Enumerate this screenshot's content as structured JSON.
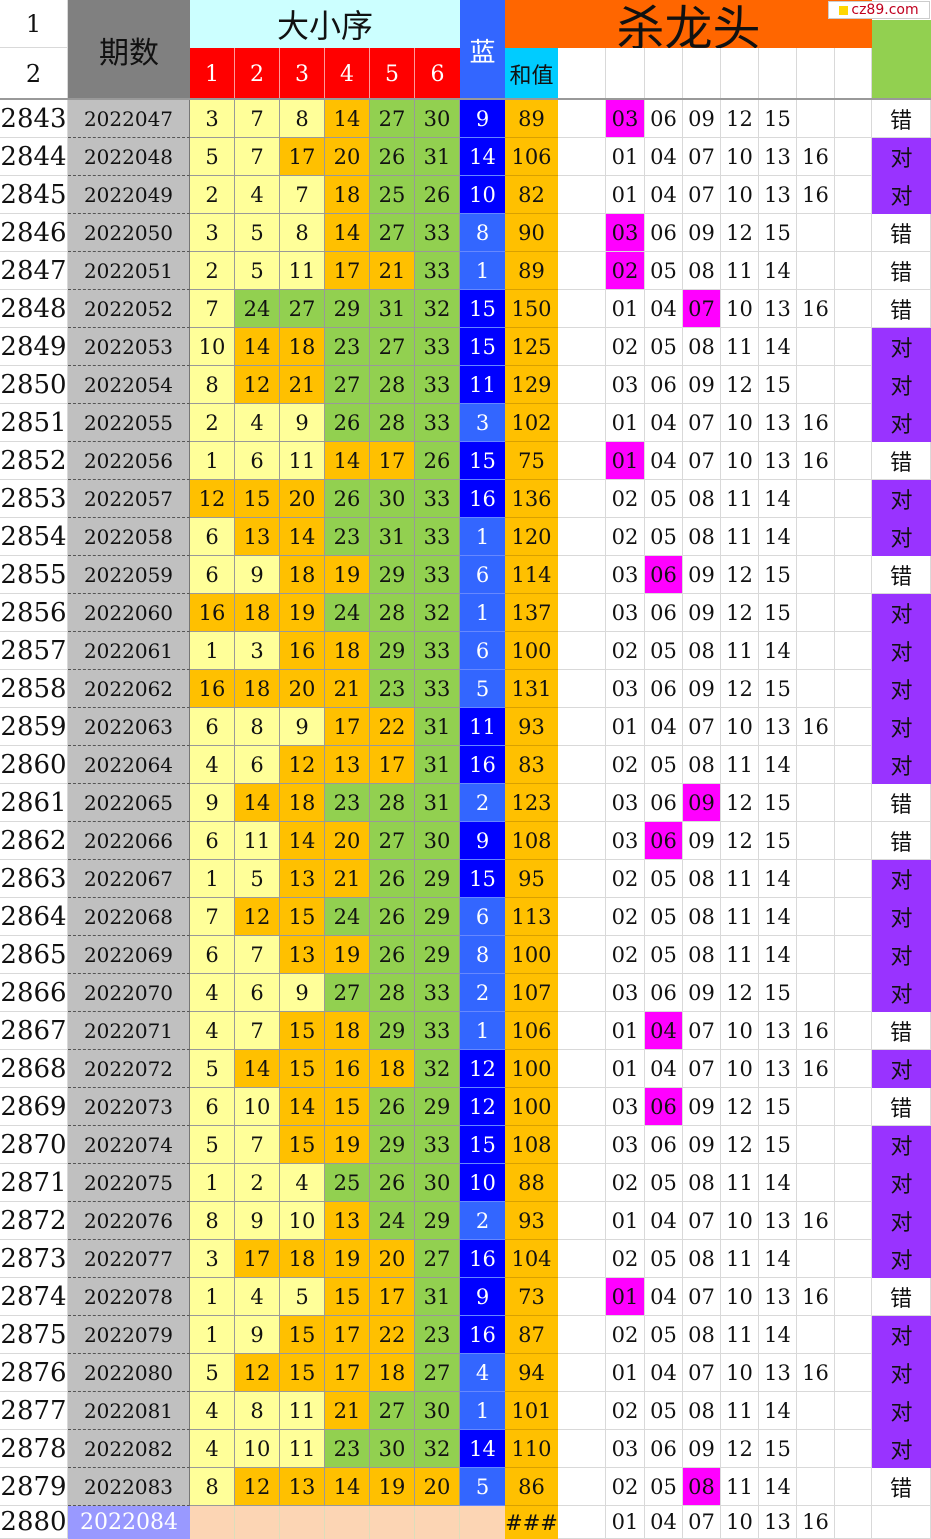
{
  "header": {
    "row_label_1": "1",
    "row_label_2": "2",
    "period_label": "期数",
    "size_order_label": "大小序",
    "ball_cols": [
      "1",
      "2",
      "3",
      "4",
      "5",
      "6"
    ],
    "blue_label": "蓝",
    "sum_label": "和值",
    "kill_label": "杀龙头"
  },
  "watermark": "cz89.com",
  "rows": [
    {
      "n": "2843",
      "p": "2022047",
      "r": [
        3,
        7,
        8,
        14,
        27,
        30
      ],
      "b": 9,
      "s": "89",
      "k": [
        "03",
        "06",
        "09",
        "12",
        "15"
      ],
      "h": 0,
      "res": "错"
    },
    {
      "n": "2844",
      "p": "2022048",
      "r": [
        5,
        7,
        17,
        20,
        26,
        31
      ],
      "b": 14,
      "s": "106",
      "k": [
        "01",
        "04",
        "07",
        "10",
        "13",
        "16"
      ],
      "h": -1,
      "res": "对"
    },
    {
      "n": "2845",
      "p": "2022049",
      "r": [
        2,
        4,
        7,
        18,
        25,
        26
      ],
      "b": 10,
      "s": "82",
      "k": [
        "01",
        "04",
        "07",
        "10",
        "13",
        "16"
      ],
      "h": -1,
      "res": "对"
    },
    {
      "n": "2846",
      "p": "2022050",
      "r": [
        3,
        5,
        8,
        14,
        27,
        33
      ],
      "b": 8,
      "s": "90",
      "k": [
        "03",
        "06",
        "09",
        "12",
        "15"
      ],
      "h": 0,
      "res": "错"
    },
    {
      "n": "2847",
      "p": "2022051",
      "r": [
        2,
        5,
        11,
        17,
        21,
        33
      ],
      "b": 1,
      "s": "89",
      "k": [
        "02",
        "05",
        "08",
        "11",
        "14"
      ],
      "h": 0,
      "res": "错"
    },
    {
      "n": "2848",
      "p": "2022052",
      "r": [
        7,
        24,
        27,
        29,
        31,
        32
      ],
      "b": 15,
      "s": "150",
      "k": [
        "01",
        "04",
        "07",
        "10",
        "13",
        "16"
      ],
      "h": 2,
      "res": "错"
    },
    {
      "n": "2849",
      "p": "2022053",
      "r": [
        10,
        14,
        18,
        23,
        27,
        33
      ],
      "b": 15,
      "s": "125",
      "k": [
        "02",
        "05",
        "08",
        "11",
        "14"
      ],
      "h": -1,
      "res": "对"
    },
    {
      "n": "2850",
      "p": "2022054",
      "r": [
        8,
        12,
        21,
        27,
        28,
        33
      ],
      "b": 11,
      "s": "129",
      "k": [
        "03",
        "06",
        "09",
        "12",
        "15"
      ],
      "h": -1,
      "res": "对"
    },
    {
      "n": "2851",
      "p": "2022055",
      "r": [
        2,
        4,
        9,
        26,
        28,
        33
      ],
      "b": 3,
      "s": "102",
      "k": [
        "01",
        "04",
        "07",
        "10",
        "13",
        "16"
      ],
      "h": -1,
      "res": "对"
    },
    {
      "n": "2852",
      "p": "2022056",
      "r": [
        1,
        6,
        11,
        14,
        17,
        26
      ],
      "b": 15,
      "s": "75",
      "k": [
        "01",
        "04",
        "07",
        "10",
        "13",
        "16"
      ],
      "h": 0,
      "res": "错"
    },
    {
      "n": "2853",
      "p": "2022057",
      "r": [
        12,
        15,
        20,
        26,
        30,
        33
      ],
      "b": 16,
      "s": "136",
      "k": [
        "02",
        "05",
        "08",
        "11",
        "14"
      ],
      "h": -1,
      "res": "对"
    },
    {
      "n": "2854",
      "p": "2022058",
      "r": [
        6,
        13,
        14,
        23,
        31,
        33
      ],
      "b": 1,
      "s": "120",
      "k": [
        "02",
        "05",
        "08",
        "11",
        "14"
      ],
      "h": -1,
      "res": "对"
    },
    {
      "n": "2855",
      "p": "2022059",
      "r": [
        6,
        9,
        18,
        19,
        29,
        33
      ],
      "b": 6,
      "s": "114",
      "k": [
        "03",
        "06",
        "09",
        "12",
        "15"
      ],
      "h": 1,
      "res": "错"
    },
    {
      "n": "2856",
      "p": "2022060",
      "r": [
        16,
        18,
        19,
        24,
        28,
        32
      ],
      "b": 1,
      "s": "137",
      "k": [
        "03",
        "06",
        "09",
        "12",
        "15"
      ],
      "h": -1,
      "res": "对"
    },
    {
      "n": "2857",
      "p": "2022061",
      "r": [
        1,
        3,
        16,
        18,
        29,
        33
      ],
      "b": 6,
      "s": "100",
      "k": [
        "02",
        "05",
        "08",
        "11",
        "14"
      ],
      "h": -1,
      "res": "对"
    },
    {
      "n": "2858",
      "p": "2022062",
      "r": [
        16,
        18,
        20,
        21,
        23,
        33
      ],
      "b": 5,
      "s": "131",
      "k": [
        "03",
        "06",
        "09",
        "12",
        "15"
      ],
      "h": -1,
      "res": "对"
    },
    {
      "n": "2859",
      "p": "2022063",
      "r": [
        6,
        8,
        9,
        17,
        22,
        31
      ],
      "b": 11,
      "s": "93",
      "k": [
        "01",
        "04",
        "07",
        "10",
        "13",
        "16"
      ],
      "h": -1,
      "res": "对"
    },
    {
      "n": "2860",
      "p": "2022064",
      "r": [
        4,
        6,
        12,
        13,
        17,
        31
      ],
      "b": 16,
      "s": "83",
      "k": [
        "02",
        "05",
        "08",
        "11",
        "14"
      ],
      "h": -1,
      "res": "对"
    },
    {
      "n": "2861",
      "p": "2022065",
      "r": [
        9,
        14,
        18,
        23,
        28,
        31
      ],
      "b": 2,
      "s": "123",
      "k": [
        "03",
        "06",
        "09",
        "12",
        "15"
      ],
      "h": 2,
      "res": "错"
    },
    {
      "n": "2862",
      "p": "2022066",
      "r": [
        6,
        11,
        14,
        20,
        27,
        30
      ],
      "b": 9,
      "s": "108",
      "k": [
        "03",
        "06",
        "09",
        "12",
        "15"
      ],
      "h": 1,
      "res": "错"
    },
    {
      "n": "2863",
      "p": "2022067",
      "r": [
        1,
        5,
        13,
        21,
        26,
        29
      ],
      "b": 15,
      "s": "95",
      "k": [
        "02",
        "05",
        "08",
        "11",
        "14"
      ],
      "h": -1,
      "res": "对"
    },
    {
      "n": "2864",
      "p": "2022068",
      "r": [
        7,
        12,
        15,
        24,
        26,
        29
      ],
      "b": 6,
      "s": "113",
      "k": [
        "02",
        "05",
        "08",
        "11",
        "14"
      ],
      "h": -1,
      "res": "对"
    },
    {
      "n": "2865",
      "p": "2022069",
      "r": [
        6,
        7,
        13,
        19,
        26,
        29
      ],
      "b": 8,
      "s": "100",
      "k": [
        "02",
        "05",
        "08",
        "11",
        "14"
      ],
      "h": -1,
      "res": "对"
    },
    {
      "n": "2866",
      "p": "2022070",
      "r": [
        4,
        6,
        9,
        27,
        28,
        33
      ],
      "b": 2,
      "s": "107",
      "k": [
        "03",
        "06",
        "09",
        "12",
        "15"
      ],
      "h": -1,
      "res": "对"
    },
    {
      "n": "2867",
      "p": "2022071",
      "r": [
        4,
        7,
        15,
        18,
        29,
        33
      ],
      "b": 1,
      "s": "106",
      "k": [
        "01",
        "04",
        "07",
        "10",
        "13",
        "16"
      ],
      "h": 1,
      "res": "错"
    },
    {
      "n": "2868",
      "p": "2022072",
      "r": [
        5,
        14,
        15,
        16,
        18,
        32
      ],
      "b": 12,
      "s": "100",
      "k": [
        "01",
        "04",
        "07",
        "10",
        "13",
        "16"
      ],
      "h": -1,
      "res": "对"
    },
    {
      "n": "2869",
      "p": "2022073",
      "r": [
        6,
        10,
        14,
        15,
        26,
        29
      ],
      "b": 12,
      "s": "100",
      "k": [
        "03",
        "06",
        "09",
        "12",
        "15"
      ],
      "h": 1,
      "res": "错"
    },
    {
      "n": "2870",
      "p": "2022074",
      "r": [
        5,
        7,
        15,
        19,
        29,
        33
      ],
      "b": 15,
      "s": "108",
      "k": [
        "03",
        "06",
        "09",
        "12",
        "15"
      ],
      "h": -1,
      "res": "对"
    },
    {
      "n": "2871",
      "p": "2022075",
      "r": [
        1,
        2,
        4,
        25,
        26,
        30
      ],
      "b": 10,
      "s": "88",
      "k": [
        "02",
        "05",
        "08",
        "11",
        "14"
      ],
      "h": -1,
      "res": "对"
    },
    {
      "n": "2872",
      "p": "2022076",
      "r": [
        8,
        9,
        10,
        13,
        24,
        29
      ],
      "b": 2,
      "s": "93",
      "k": [
        "01",
        "04",
        "07",
        "10",
        "13",
        "16"
      ],
      "h": -1,
      "res": "对"
    },
    {
      "n": "2873",
      "p": "2022077",
      "r": [
        3,
        17,
        18,
        19,
        20,
        27
      ],
      "b": 16,
      "s": "104",
      "k": [
        "02",
        "05",
        "08",
        "11",
        "14"
      ],
      "h": -1,
      "res": "对"
    },
    {
      "n": "2874",
      "p": "2022078",
      "r": [
        1,
        4,
        5,
        15,
        17,
        31
      ],
      "b": 9,
      "s": "73",
      "k": [
        "01",
        "04",
        "07",
        "10",
        "13",
        "16"
      ],
      "h": 0,
      "res": "错"
    },
    {
      "n": "2875",
      "p": "2022079",
      "r": [
        1,
        9,
        15,
        17,
        22,
        23
      ],
      "b": 16,
      "s": "87",
      "k": [
        "02",
        "05",
        "08",
        "11",
        "14"
      ],
      "h": -1,
      "res": "对"
    },
    {
      "n": "2876",
      "p": "2022080",
      "r": [
        5,
        12,
        15,
        17,
        18,
        27
      ],
      "b": 4,
      "s": "94",
      "k": [
        "01",
        "04",
        "07",
        "10",
        "13",
        "16"
      ],
      "h": -1,
      "res": "对"
    },
    {
      "n": "2877",
      "p": "2022081",
      "r": [
        4,
        8,
        11,
        21,
        27,
        30
      ],
      "b": 1,
      "s": "101",
      "k": [
        "02",
        "05",
        "08",
        "11",
        "14"
      ],
      "h": -1,
      "res": "对"
    },
    {
      "n": "2878",
      "p": "2022082",
      "r": [
        4,
        10,
        11,
        23,
        30,
        32
      ],
      "b": 14,
      "s": "110",
      "k": [
        "03",
        "06",
        "09",
        "12",
        "15"
      ],
      "h": -1,
      "res": "对"
    },
    {
      "n": "2879",
      "p": "2022083",
      "r": [
        8,
        12,
        13,
        14,
        19,
        20
      ],
      "b": 5,
      "s": "86",
      "k": [
        "02",
        "05",
        "08",
        "11",
        "14"
      ],
      "h": 2,
      "res": "错"
    }
  ],
  "last_row": {
    "n": "2880",
    "p": "2022084",
    "s": "###",
    "k": [
      "01",
      "04",
      "07",
      "10",
      "13",
      "16"
    ]
  },
  "colors": {
    "red_header": "#ff0000",
    "cyan": "#ccffff",
    "blue": "#0000ff",
    "blue_light": "#3366ff",
    "sum": "#ffc000",
    "orange": "#ff6600",
    "kill_green": "#92d050",
    "gray": "#c0c0c0",
    "ball_low": "#ffff99",
    "ball_mid": "#ffc000",
    "ball_high": "#92d050",
    "hit": "#ff00ff",
    "correct": "#9933ff",
    "peach": "#fcd5b4",
    "period_next": "#9999ff"
  }
}
